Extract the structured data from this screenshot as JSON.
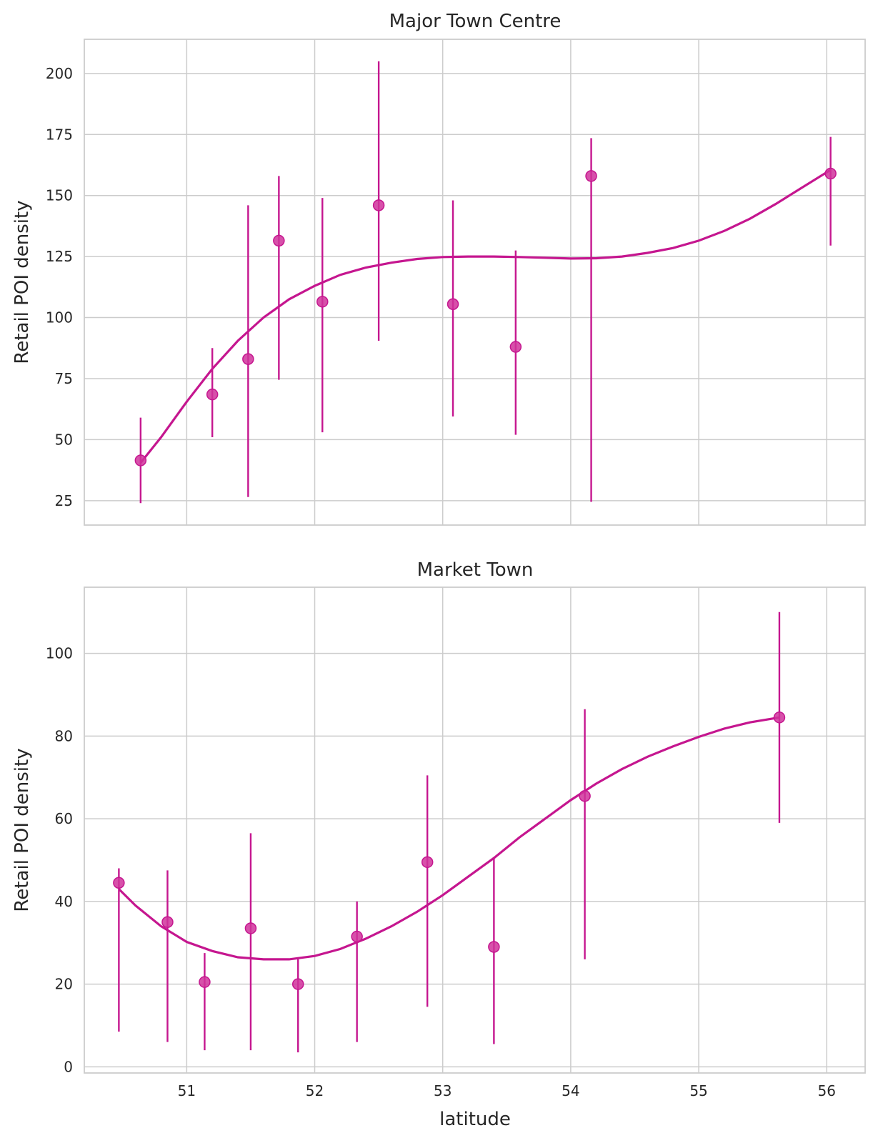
{
  "colors": {
    "series": "#c5168f",
    "grid": "#cccccc",
    "text": "#262626"
  },
  "chart_data": [
    {
      "type": "scatter",
      "title": "Major Town Centre",
      "xlabel": "",
      "ylabel": "Retail POI density",
      "xlim": [
        50.2,
        56.3
      ],
      "ylim": [
        15,
        214
      ],
      "xticks": [
        51,
        52,
        53,
        54,
        55,
        56
      ],
      "yticks": [
        25,
        50,
        75,
        100,
        125,
        150,
        175,
        200
      ],
      "show_xtick_labels": false,
      "grid": true,
      "points": [
        {
          "x": 50.64,
          "y": 41.5,
          "low": 24,
          "high": 59
        },
        {
          "x": 51.2,
          "y": 68.5,
          "low": 51,
          "high": 87.5
        },
        {
          "x": 51.48,
          "y": 83,
          "low": 26.5,
          "high": 146
        },
        {
          "x": 51.72,
          "y": 131.5,
          "low": 74.5,
          "high": 158
        },
        {
          "x": 52.06,
          "y": 106.5,
          "low": 53,
          "high": 149
        },
        {
          "x": 52.5,
          "y": 146,
          "low": 90.5,
          "high": 205
        },
        {
          "x": 53.08,
          "y": 105.5,
          "low": 59.5,
          "high": 148
        },
        {
          "x": 53.57,
          "y": 88,
          "low": 52,
          "high": 127.5
        },
        {
          "x": 54.16,
          "y": 158,
          "low": 24.5,
          "high": 173.5
        },
        {
          "x": 56.03,
          "y": 159,
          "low": 129.5,
          "high": 174
        }
      ],
      "fit": {
        "x": [
          50.64,
          50.8,
          51.0,
          51.2,
          51.4,
          51.6,
          51.8,
          52.0,
          52.2,
          52.4,
          52.6,
          52.8,
          53.0,
          53.2,
          53.4,
          53.6,
          53.8,
          54.0,
          54.2,
          54.4,
          54.6,
          54.8,
          55.0,
          55.2,
          55.4,
          55.6,
          55.8,
          56.03
        ],
        "y": [
          40.5,
          51,
          65.5,
          79,
          90.5,
          100,
          107.5,
          113,
          117.5,
          120.5,
          122.5,
          124,
          124.8,
          125,
          125,
          124.8,
          124.5,
          124.2,
          124.3,
          125,
          126.5,
          128.5,
          131.5,
          135.5,
          140.5,
          146.5,
          153,
          160.5
        ]
      }
    },
    {
      "type": "scatter",
      "title": "Market Town",
      "xlabel": "latitude",
      "ylabel": "Retail POI density",
      "xlim": [
        50.2,
        56.3
      ],
      "ylim": [
        -1.5,
        116
      ],
      "xticks": [
        51,
        52,
        53,
        54,
        55,
        56
      ],
      "yticks": [
        0,
        20,
        40,
        60,
        80,
        100
      ],
      "show_xtick_labels": true,
      "grid": true,
      "points": [
        {
          "x": 50.47,
          "y": 44.5,
          "low": 8.5,
          "high": 48
        },
        {
          "x": 50.85,
          "y": 35,
          "low": 6,
          "high": 47.5
        },
        {
          "x": 51.14,
          "y": 20.5,
          "low": 4,
          "high": 27.5
        },
        {
          "x": 51.5,
          "y": 33.5,
          "low": 4,
          "high": 56.5
        },
        {
          "x": 51.87,
          "y": 20,
          "low": 3.5,
          "high": 26
        },
        {
          "x": 52.33,
          "y": 31.5,
          "low": 6,
          "high": 40
        },
        {
          "x": 52.88,
          "y": 49.5,
          "low": 14.5,
          "high": 70.5
        },
        {
          "x": 53.4,
          "y": 29,
          "low": 5.5,
          "high": 50.5
        },
        {
          "x": 54.11,
          "y": 65.5,
          "low": 26,
          "high": 86.5
        },
        {
          "x": 55.63,
          "y": 84.5,
          "low": 59,
          "high": 110
        }
      ],
      "fit": {
        "x": [
          50.47,
          50.6,
          50.8,
          51.0,
          51.2,
          51.4,
          51.6,
          51.8,
          52.0,
          52.2,
          52.4,
          52.6,
          52.8,
          53.0,
          53.2,
          53.4,
          53.6,
          53.8,
          54.0,
          54.2,
          54.4,
          54.6,
          54.8,
          55.0,
          55.2,
          55.4,
          55.63
        ],
        "y": [
          43,
          39,
          34,
          30.2,
          28,
          26.5,
          26,
          26,
          26.8,
          28.5,
          31,
          34,
          37.5,
          41.5,
          46,
          50.5,
          55.5,
          60,
          64.5,
          68.5,
          72,
          75,
          77.5,
          79.8,
          81.8,
          83.3,
          84.5
        ]
      }
    }
  ]
}
